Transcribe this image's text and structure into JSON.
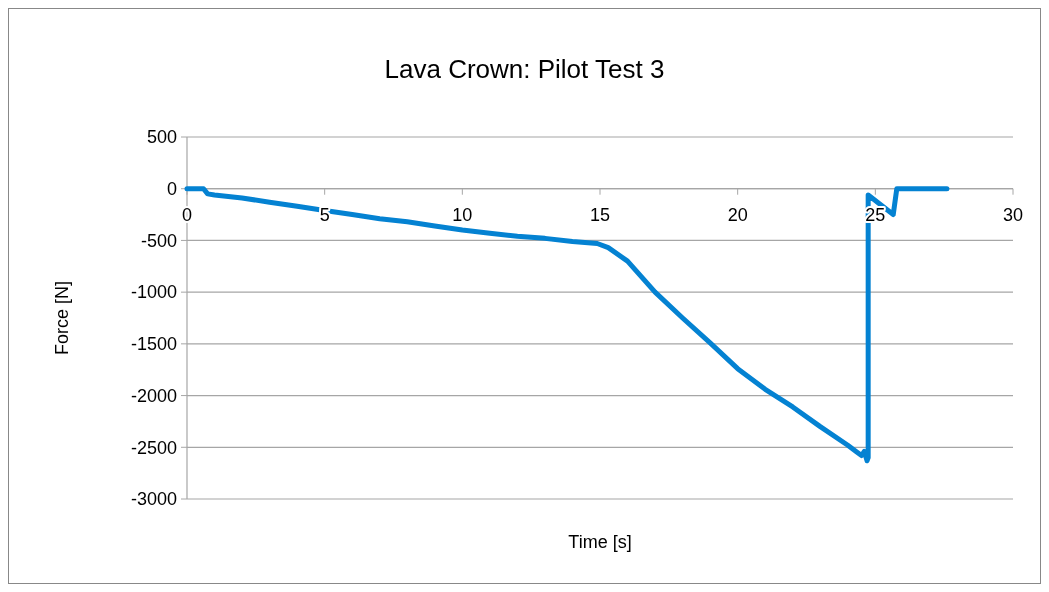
{
  "chart_data": {
    "type": "line",
    "title": "Lava Crown: Pilot Test 3",
    "xlabel": "Time [s]",
    "ylabel": "Force [N]",
    "series": [
      {
        "color": "#0482d2",
        "x": [
          0,
          0.6,
          0.75,
          1,
          2,
          3,
          4,
          5,
          6,
          7,
          8,
          9,
          10,
          11,
          12,
          13,
          14,
          14.9,
          15.3,
          16,
          17,
          18,
          19,
          20,
          21,
          22,
          23,
          24,
          24.3,
          24.5,
          24.6,
          24.7,
          24.74,
          24.74,
          25.65,
          25.78,
          26,
          27.6
        ],
        "values": [
          0,
          0,
          -50,
          -60,
          -90,
          -130,
          -170,
          -210,
          -250,
          -290,
          -320,
          -360,
          -400,
          -430,
          -460,
          -480,
          -510,
          -530,
          -570,
          -700,
          -1000,
          -1250,
          -1490,
          -1740,
          -1940,
          -2110,
          -2300,
          -2480,
          -2540,
          -2580,
          -2540,
          -2630,
          -2600,
          -60,
          -250,
          0,
          0,
          0
        ]
      }
    ],
    "xlim": [
      0,
      30
    ],
    "xticks": [
      0,
      5,
      10,
      15,
      20,
      25,
      30
    ],
    "ylim": [
      -3000,
      500
    ],
    "yticks": [
      -3000,
      -2500,
      -2000,
      -1500,
      -1000,
      -500,
      0,
      500
    ],
    "grid": "y",
    "marker": "none",
    "line_style": "solid"
  }
}
